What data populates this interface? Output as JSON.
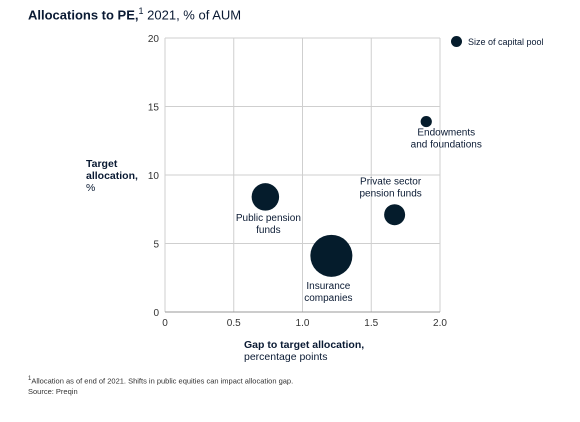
{
  "title_bold": "Allocations to PE,",
  "title_sup": "1",
  "title_rest": " 2021, % of AUM",
  "legend_label": "Size of capital pool",
  "bubble_color": "#051c2c",
  "footnote_sup": "1",
  "footnote": "Allocation as of end of 2021. Shifts in public equities can impact allocation gap.",
  "source": " Source: Preqin",
  "chart_data": {
    "type": "scatter",
    "xlabel_bold": "Gap to target allocation,",
    "xlabel_rest": "percentage points",
    "ylabel_bold_1": "Target",
    "ylabel_bold_2": "allocation,",
    "ylabel_rest": "%",
    "xlim": [
      0,
      2.0
    ],
    "ylim": [
      0,
      20
    ],
    "xticks": [
      "0",
      "0.5",
      "1.0",
      "1.5",
      "2.0"
    ],
    "yticks": [
      "0",
      "5",
      "10",
      "15",
      "20"
    ],
    "grid": true,
    "legend_position": "top-right",
    "points": [
      {
        "label_lines": [
          "Endowments",
          "and foundations"
        ],
        "x": 1.9,
        "y": 13.9,
        "size": 1
      },
      {
        "label_lines": [
          "Private sector",
          "pension funds"
        ],
        "x": 1.67,
        "y": 7.1,
        "size": 3.5
      },
      {
        "label_lines": [
          "Public pension",
          "funds"
        ],
        "x": 0.73,
        "y": 8.4,
        "size": 6
      },
      {
        "label_lines": [
          "Insurance",
          "companies"
        ],
        "x": 1.21,
        "y": 4.1,
        "size": 14
      }
    ]
  }
}
